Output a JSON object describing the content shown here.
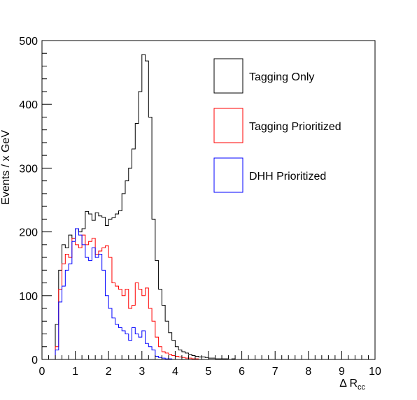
{
  "chart_data": {
    "type": "line",
    "subtype": "step-histogram",
    "title": "",
    "xlabel": "Δ R",
    "xlabel_subscript": "cc",
    "ylabel": "Events / x GeV",
    "xlim": [
      0,
      10
    ],
    "ylim": [
      0,
      500
    ],
    "xticks": [
      0,
      1,
      2,
      3,
      4,
      5,
      6,
      7,
      8,
      9,
      10
    ],
    "yticks": [
      0,
      100,
      200,
      300,
      400,
      500
    ],
    "grid": false,
    "legend_position": "top-right",
    "bin_width": 0.1,
    "x_start": 0.4,
    "series": [
      {
        "name": "Tagging Only",
        "color": "#000000",
        "values": [
          55,
          140,
          180,
          175,
          195,
          190,
          205,
          200,
          205,
          232,
          228,
          218,
          230,
          225,
          223,
          210,
          220,
          222,
          228,
          233,
          260,
          280,
          300,
          330,
          370,
          420,
          478,
          468,
          380,
          220,
          155,
          110,
          85,
          60,
          42,
          30,
          20,
          15,
          12,
          10,
          8,
          6,
          5,
          4,
          4,
          3,
          2,
          2,
          1,
          1,
          1,
          1,
          0,
          1,
          0,
          0,
          0,
          0,
          0,
          0,
          0,
          0,
          0,
          0,
          0,
          0,
          0,
          0,
          0,
          0,
          0,
          0,
          0,
          0,
          0,
          0,
          0,
          0,
          0,
          0,
          0,
          0,
          0,
          0,
          0,
          0,
          0,
          0,
          0,
          0,
          0,
          0,
          0,
          0,
          0,
          0
        ]
      },
      {
        "name": "Tagging Prioritized",
        "color": "#ff0000",
        "values": [
          20,
          110,
          150,
          165,
          160,
          190,
          180,
          175,
          195,
          180,
          185,
          190,
          165,
          170,
          175,
          178,
          160,
          120,
          115,
          110,
          100,
          110,
          80,
          85,
          120,
          110,
          100,
          112,
          80,
          60,
          35,
          20,
          12,
          10,
          8,
          6,
          5,
          4,
          3,
          2,
          2,
          1,
          1,
          0,
          0,
          0,
          0,
          0,
          0,
          0,
          0,
          0,
          0,
          0,
          0,
          0,
          0,
          0,
          0,
          0,
          0,
          0,
          0,
          0,
          0,
          0,
          0,
          0,
          0,
          0,
          0,
          0,
          0,
          0,
          0,
          0,
          0,
          0,
          0,
          0,
          0,
          0,
          0,
          0,
          0,
          0,
          0,
          0,
          0,
          0,
          0,
          0,
          0,
          0,
          0,
          0
        ]
      },
      {
        "name": "DHH Prioritized",
        "color": "#0000ff",
        "values": [
          15,
          90,
          115,
          140,
          150,
          185,
          205,
          195,
          180,
          160,
          155,
          175,
          160,
          165,
          140,
          100,
          80,
          65,
          55,
          50,
          45,
          40,
          30,
          50,
          40,
          35,
          45,
          25,
          20,
          15,
          5,
          3,
          2,
          1,
          1,
          0,
          0,
          0,
          0,
          0,
          0,
          0,
          0,
          0,
          0,
          0,
          0,
          0,
          0,
          0,
          0,
          0,
          0,
          0,
          0,
          0,
          0,
          0,
          0,
          0,
          0,
          0,
          0,
          0,
          0,
          0,
          0,
          0,
          0,
          0,
          0,
          0,
          0,
          0,
          0,
          0,
          0,
          0,
          0,
          0,
          0,
          0,
          0,
          0,
          0,
          0,
          0,
          0,
          0,
          0,
          0,
          0,
          0,
          0,
          0,
          0
        ]
      }
    ]
  }
}
